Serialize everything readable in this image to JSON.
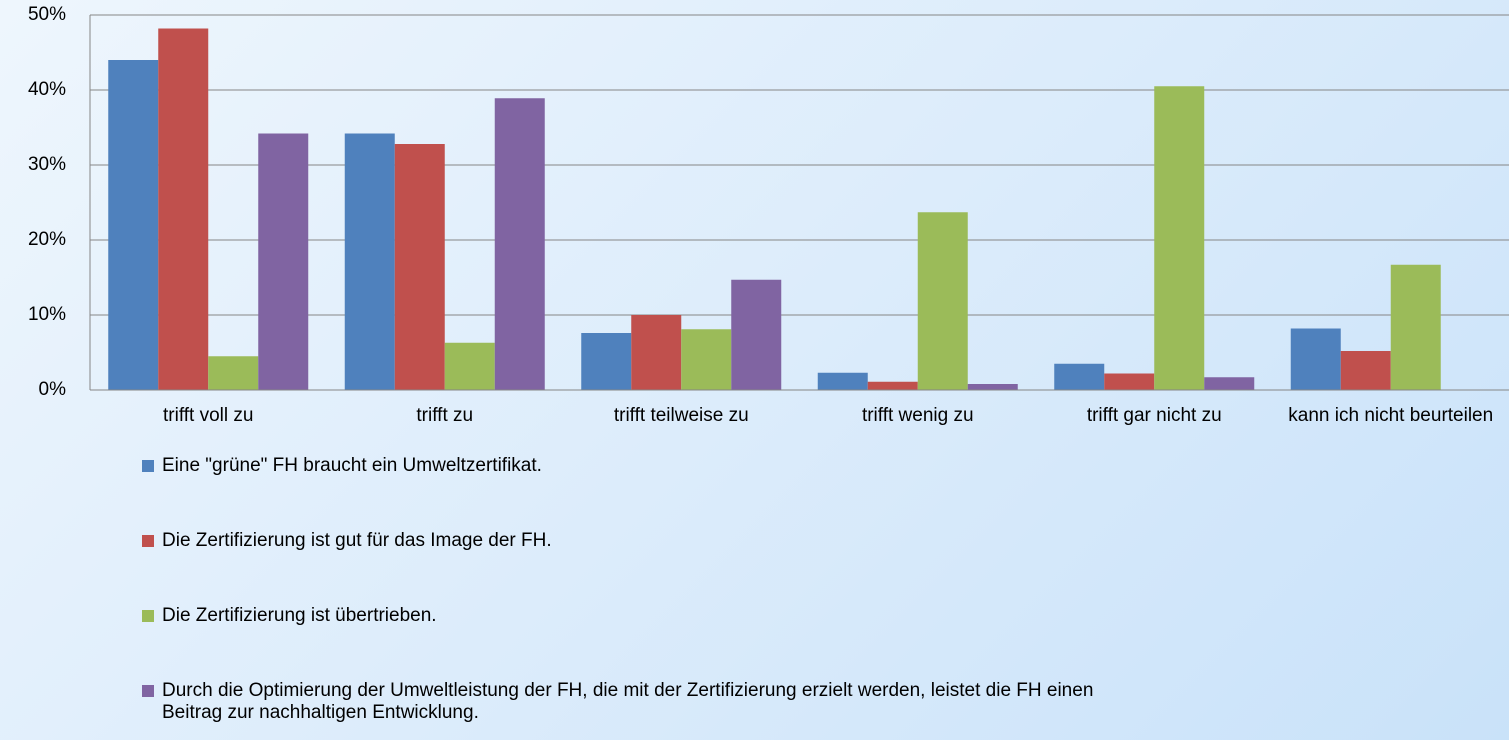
{
  "chart_data": {
    "type": "bar",
    "categories": [
      "trifft voll zu",
      "trifft zu",
      "trifft teilweise zu",
      "trifft wenig zu",
      "trifft gar nicht zu",
      "kann ich nicht beurteilen"
    ],
    "series": [
      {
        "name": "Eine \"grüne\" FH braucht ein Umweltzertifikat.",
        "color": "#4f81bd",
        "values": [
          44,
          34.2,
          7.6,
          2.3,
          3.5,
          8.2
        ]
      },
      {
        "name": "Die Zertifizierung ist gut für das Image der FH.",
        "color": "#c0504d",
        "values": [
          48.2,
          32.8,
          10,
          1.1,
          2.2,
          5.2
        ]
      },
      {
        "name": "Die Zertifizierung ist übertrieben.",
        "color": "#9bbb59",
        "values": [
          4.5,
          6.3,
          8.1,
          23.7,
          40.5,
          16.7
        ]
      },
      {
        "name": "Durch die Optimierung der Umweltleistung der FH, die mit der Zertifizierung erzielt werden, leistet die FH einen Beitrag zur nachhaltigen Entwicklung.",
        "color": "#8064a2",
        "values": [
          34.2,
          38.9,
          14.7,
          0.8,
          1.7,
          null
        ]
      }
    ],
    "ylim": [
      0,
      50
    ],
    "yticks": [
      {
        "value": 0,
        "label": "0%"
      },
      {
        "value": 10,
        "label": "10%"
      },
      {
        "value": 20,
        "label": "20%"
      },
      {
        "value": 30,
        "label": "30%"
      },
      {
        "value": 40,
        "label": "40%"
      },
      {
        "value": 50,
        "label": "50%"
      }
    ],
    "grid": true
  }
}
